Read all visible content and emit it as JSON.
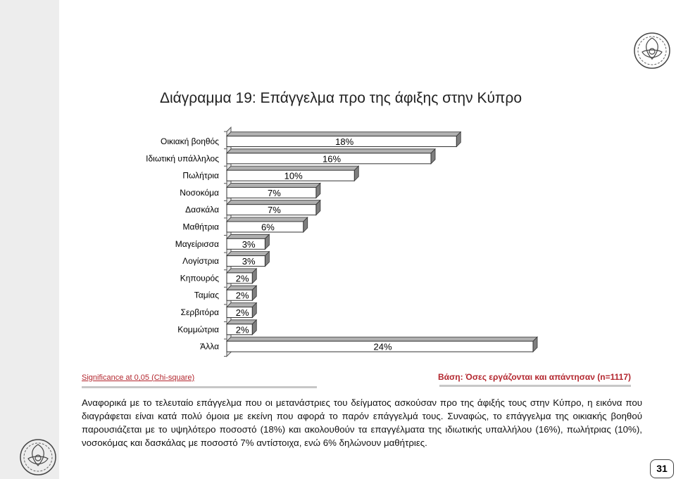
{
  "page": {
    "title": "Διάγραμμα 19: Επάγγελμα προ της άφιξης στην Κύπρο",
    "significance": "Significance at 0,05 (Chi-square)",
    "base": "Βάση: Όσες εργάζονται και απάντησαν (n=1117)",
    "paragraph": "Αναφορικά με το τελευταίο επάγγελμα που οι μετανάστριες του δείγματος ασκούσαν προ της άφιξής τους στην Κύπρο, η εικόνα που διαγράφεται είναι κατά πολύ όμοια με εκείνη που αφορά το παρόν επάγγελμά τους. Συναφώς, το επάγγελμα της οικιακής βοηθού παρουσιάζεται με το υψηλότερο ποσοστό (18%) και ακολουθούν τα επαγγέλματα της ιδιωτικής υπαλλήλου (16%), πωλήτριας (10%), νοσοκόμας και δασκάλας με ποσοστό 7% αντίστοιχα, ενώ 6% δηλώνουν μαθήτριες.",
    "page_number": "31"
  },
  "colors": {
    "bar_fill": "#ffffff",
    "bar_side": "#7f7f7f",
    "bar_top": "#b0b0b0",
    "accent_red": "#b3262e",
    "left_band": "#ededed"
  },
  "icons": {
    "logo_top": "lace-emblem-icon",
    "logo_bottom": "lace-emblem-icon"
  },
  "chart_data": {
    "type": "bar",
    "orientation": "horizontal",
    "style": "3d",
    "title": "Διάγραμμα 19: Επάγγελμα προ της άφιξης στην Κύπρο",
    "categories": [
      "Οικιακή βοηθός",
      "Ιδιωτική υπάλληλος",
      "Πωλήτρια",
      "Νοσοκόμα",
      "Δασκάλα",
      "Μαθήτρια",
      "Μαγείρισσα",
      "Λογίστρια",
      "Κηπουρός",
      "Ταμίας",
      "Σερβιτόρα",
      "Κομμώτρια",
      "Άλλα"
    ],
    "values": [
      18,
      16,
      10,
      7,
      7,
      6,
      3,
      3,
      2,
      2,
      2,
      2,
      24
    ],
    "data_labels": [
      "18%",
      "16%",
      "10%",
      "7%",
      "7%",
      "6%",
      "3%",
      "3%",
      "2%",
      "2%",
      "2%",
      "2%",
      "24%"
    ],
    "unit": "%",
    "xlim": [
      0,
      24
    ],
    "grid": false,
    "legend": "none"
  }
}
